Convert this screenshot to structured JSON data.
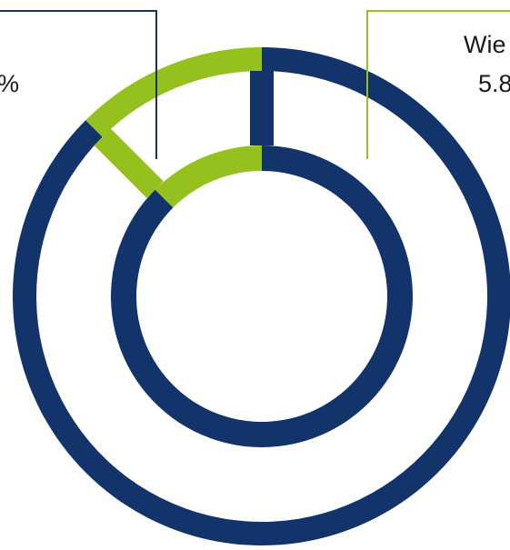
{
  "chart_data": {
    "type": "pie",
    "style": "nested-donut",
    "colors": {
      "main": "#12346a",
      "highlight": "#95c11f"
    },
    "annotations": [
      {
        "text": "%",
        "color": "#12346a"
      },
      {
        "text_line1": "Wie",
        "text_line2": "5.8",
        "color": "#95c11f"
      }
    ],
    "rings": [
      {
        "name": "",
        "slices": [
          {
            "label": "",
            "value": 87.5,
            "color": "#12346a"
          },
          {
            "label": "",
            "value": 12.5,
            "color": "#95c11f"
          }
        ]
      },
      {
        "name": "",
        "slices": [
          {
            "label": "",
            "value": 87.5,
            "color": "#12346a"
          },
          {
            "label": "",
            "value": 12.5,
            "color": "#95c11f"
          }
        ]
      }
    ]
  }
}
